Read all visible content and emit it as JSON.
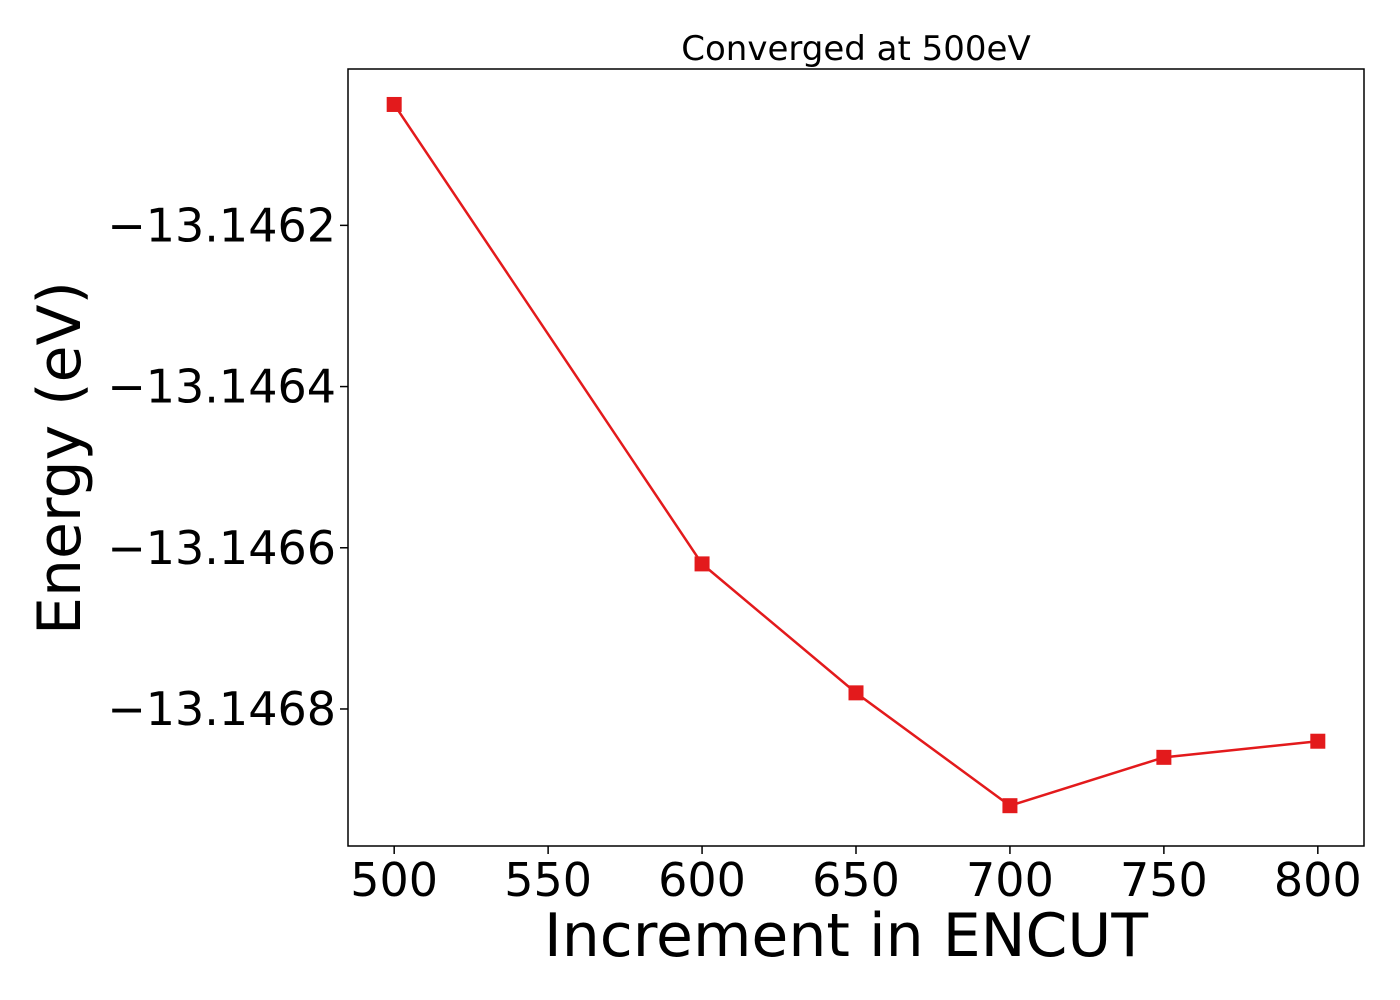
{
  "chart_data": {
    "type": "line",
    "title": "Converged at 500eV",
    "xlabel": "Increment in ENCUT",
    "ylabel": "Energy (eV)",
    "x": [
      500,
      600,
      650,
      700,
      750,
      800
    ],
    "series": [
      {
        "values": [
          -13.14605,
          -13.14662,
          -13.14678,
          -13.14692,
          -13.14686,
          -13.14684
        ],
        "color": "#e31a1c",
        "marker": "square"
      }
    ],
    "xticks": [
      500,
      550,
      600,
      650,
      700,
      750,
      800
    ],
    "xtick_labels": [
      "500",
      "550",
      "600",
      "650",
      "700",
      "750",
      "800"
    ],
    "yticks": [
      -13.1462,
      -13.1464,
      -13.1466,
      -13.1468
    ],
    "ytick_labels": [
      "−13.1462",
      "−13.1464",
      "−13.1466",
      "−13.1468"
    ],
    "xlim": [
      485,
      815
    ],
    "ylim": [
      -13.14697,
      -13.146006
    ],
    "grid": false,
    "legend": "none"
  }
}
